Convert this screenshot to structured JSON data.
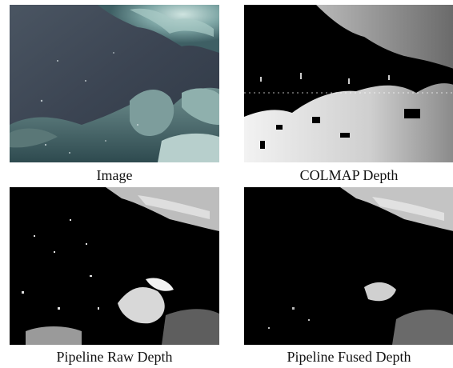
{
  "figure": {
    "panels": [
      {
        "id": "image",
        "caption": "Image"
      },
      {
        "id": "colmap",
        "caption": "COLMAP Depth"
      },
      {
        "id": "raw",
        "caption": "Pipeline Raw Depth"
      },
      {
        "id": "fused",
        "caption": "Pipeline Fused Depth"
      }
    ]
  },
  "colors": {
    "water": "#3a4553",
    "rock_light": "#7fa7a6",
    "depth_bg": "#000000"
  }
}
